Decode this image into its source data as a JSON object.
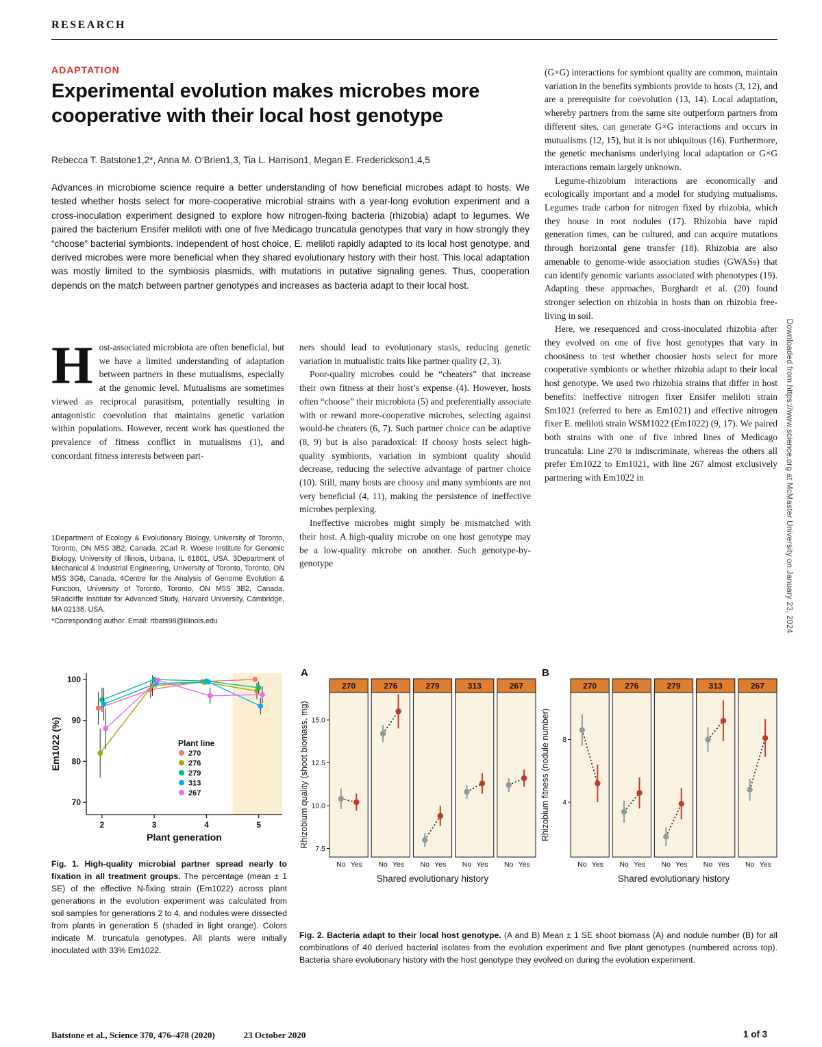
{
  "theme": {
    "accent_red": "#d6342a",
    "fig_strip_orange": "#dd7e30",
    "fig_panel_cream": "#faf3e1",
    "fig1_shade": "#fbeed2"
  },
  "page": {
    "research_label": "RESEARCH",
    "sidebar_note": "Downloaded from https://www.science.org at McMaster University on January 23, 2024",
    "footer_citation": "Batstone et al., Science 370, 476–478 (2020)",
    "footer_date": "23 October 2020",
    "footer_page": "1 of 3"
  },
  "article": {
    "section": "ADAPTATION",
    "title": "Experimental evolution makes microbes more cooperative with their local host genotype",
    "authors": "Rebecca T. Batstone1,2*, Anna M. O’Brien1,3, Tia L. Harrison1, Megan E. Frederickson1,4,5",
    "abstract": "Advances in microbiome science require a better understanding of how beneficial microbes adapt to hosts. We tested whether hosts select for more-cooperative microbial strains with a year-long evolution experiment and a cross-inoculation experiment designed to explore how nitrogen-fixing bacteria (rhizobia) adapt to legumes. We paired the bacterium Ensifer meliloti with one of five Medicago truncatula genotypes that vary in how strongly they “choose” bacterial symbionts. Independent of host choice, E. meliloti rapidly adapted to its local host genotype, and derived microbes were more beneficial when they shared evolutionary history with their host. This local adaptation was mostly limited to the symbiosis plasmids, with mutations in putative signaling genes. Thus, cooperation depends on the match between partner genotypes and increases as bacteria adapt to their local host.",
    "dropcap": "H",
    "col1": "ost-associated microbiota are often beneficial, but we have a limited understanding of adaptation between partners in these mutualisms, especially at the genomic level. Mutualisms are sometimes viewed as reciprocal parasitism, potentially resulting in antagonistic coevolution that maintains genetic variation within populations. However, recent work has questioned the prevalence of fitness conflict in mutualisms (1), and concordant fitness interests between part-",
    "affiliations": "1Department of Ecology & Evolutionary Biology, University of Toronto, Toronto, ON M5S 3B2, Canada. 2Carl R. Woese Institute for Genomic Biology, University of Illinois, Urbana, IL 61801, USA. 3Department of Mechanical & Industrial Engineering, University of Toronto, Toronto, ON M5S 3G8, Canada. 4Centre for the Analysis of Genome Evolution & Function, University of Toronto, Toronto, ON M5S 3B2, Canada. 5Radcliffe Institute for Advanced Study, Harvard University, Cambridge, MA 02138, USA.",
    "corresponding": "*Corresponding author. Email: rtbats98@illinois.edu",
    "col2": [
      "ners should lead to evolutionary stasis, reducing genetic variation in mutualistic traits like partner quality (2, 3).",
      "Poor-quality microbes could be “cheaters” that increase their own fitness at their host’s expense (4). However, hosts often “choose” their microbiota (5) and preferentially associate with or reward more-cooperative microbes, selecting against would-be cheaters (6, 7). Such partner choice can be adaptive (8, 9) but is also paradoxical: If choosy hosts select high-quality symbionts, variation in symbiont quality should decrease, reducing the selective advantage of partner choice (10). Still, many hosts are choosy and many symbionts are not very beneficial (4, 11), making the persistence of ineffective microbes perplexing.",
      "Ineffective microbes might simply be mismatched with their host. A high-quality microbe on one host genotype may be a low-quality microbe on another. Such genotype-by-genotype"
    ],
    "col3": [
      "(G×G) interactions for symbiont quality are common, maintain variation in the benefits symbionts provide to hosts (3, 12), and are a prerequisite for coevolution (13, 14). Local adaptation, whereby partners from the same site outperform partners from different sites, can generate G×G interactions and occurs in mutualisms (12, 15), but it is not ubiquitous (16). Furthermore, the genetic mechanisms underlying local adaptation or G×G interactions remain largely unknown.",
      "Legume-rhizobium interactions are economically and ecologically important and a model for studying mutualisms. Legumes trade carbon for nitrogen fixed by rhizobia, which they house in root nodules (17). Rhizobia have rapid generation times, can be cultured, and can acquire mutations through horizontal gene transfer (18). Rhizobia are also amenable to genome-wide association studies (GWASs) that can identify genomic variants associated with phenotypes (19). Adapting these approaches, Burghardt et al. (20) found stronger selection on rhizobia in hosts than on rhizobia free-living in soil.",
      "Here, we resequenced and cross-inoculated rhizobia after they evolved on one of five host genotypes that vary in choosiness to test whether choosier hosts select for more cooperative symbionts or whether rhizobia adapt to their local host genotype. We used two rhizobia strains that differ in host benefits: ineffective nitrogen fixer Ensifer meliloti strain Sm1021 (referred to here as Em1021) and effective nitrogen fixer E. meliloti strain WSM1022 (Em1022) (9, 17). We paired both strains with one of five inbred lines of Medicago truncatula: Line 270 is indiscriminate, whereas the others all prefer Em1022 to Em1021, with line 267 almost exclusively partnering with Em1022 in"
    ],
    "fig1_caption_bold": "Fig. 1. High-quality microbial partner spread nearly to fixation in all treatment groups.",
    "fig1_caption_rest": " The percentage (mean ± 1 SE) of the effective N-fixing strain (Em1022) across plant generations in the evolution experiment was calculated from soil samples for generations 2 to 4, and nodules were dissected from plants in generation 5 (shaded in light orange). Colors indicate M. truncatula genotypes. All plants were initially inoculated with 33% Em1022.",
    "fig2_caption_bold": "Fig. 2. Bacteria adapt to their local host genotype.",
    "fig2_caption_rest": " (A and B) Mean ± 1 SE shoot biomass (A) and nodule number (B) for all combinations of 40 derived bacterial isolates from the evolution experiment and five plant genotypes (numbered across top). Bacteria share evolutionary history with the host genotype they evolved on during the evolution experiment."
  },
  "chart_data": [
    {
      "id": "fig1",
      "type": "line",
      "title": "",
      "xlabel": "Plant generation",
      "ylabel": "Em1022 (%)",
      "x": [
        2,
        3,
        4,
        5
      ],
      "xticks": [
        2,
        3,
        4,
        5
      ],
      "yticks": [
        70,
        80,
        90,
        100
      ],
      "xlim": [
        1.7,
        5.45
      ],
      "ylim": [
        67,
        101.5
      ],
      "grid": false,
      "legend_title": "Plant line",
      "legend_position": "inside-center",
      "shaded_region": {
        "from": 4.5,
        "to": 5.45,
        "color": "#fbeed2"
      },
      "series": [
        {
          "name": "270",
          "color": "#F8766D",
          "values": [
            93.0,
            97.5,
            99.5,
            100.0
          ],
          "se": [
            4.0,
            2.0,
            0.6,
            0.4
          ]
        },
        {
          "name": "276",
          "color": "#A3A500",
          "values": [
            82.0,
            98.5,
            99.3,
            97.2
          ],
          "se": [
            6.0,
            2.5,
            0.6,
            2.0
          ]
        },
        {
          "name": "279",
          "color": "#00BF7D",
          "values": [
            95.0,
            100.0,
            99.6,
            98.0
          ],
          "se": [
            3.0,
            0.3,
            0.5,
            1.5
          ]
        },
        {
          "name": "313",
          "color": "#00B0F6",
          "values": [
            94.0,
            99.0,
            99.4,
            93.5
          ],
          "se": [
            4.0,
            1.0,
            0.6,
            2.0
          ]
        },
        {
          "name": "267",
          "color": "#E76BF3",
          "values": [
            88.0,
            99.8,
            96.0,
            96.3
          ],
          "se": [
            5.0,
            0.4,
            2.0,
            2.0
          ]
        }
      ]
    },
    {
      "id": "fig2a",
      "panel_label": "A",
      "type": "scatter",
      "ylabel": "Rhizobium quality (shoot biomass, mg)",
      "xlabel": "Shared evolutionary history",
      "facets": [
        "270",
        "276",
        "279",
        "313",
        "267"
      ],
      "categories": [
        "No",
        "Yes"
      ],
      "ylim": [
        7.0,
        16.6
      ],
      "yticks": [
        7.5,
        10.0,
        12.5,
        15.0
      ],
      "ytick_labels": [
        "7.5",
        "10.0",
        "12.5",
        "15.0"
      ],
      "strip_color": "#dd7e30",
      "panel_bg": "#faf3e1",
      "colors": {
        "No": "#8f9a9d",
        "Yes": "#c03a2b"
      },
      "values": {
        "No": [
          10.4,
          14.2,
          8.0,
          10.8,
          11.2
        ],
        "Yes": [
          10.2,
          15.5,
          9.4,
          11.3,
          11.6
        ]
      },
      "se": {
        "No": [
          0.6,
          0.5,
          0.4,
          0.4,
          0.4
        ],
        "Yes": [
          0.5,
          1.0,
          0.6,
          0.6,
          0.5
        ]
      }
    },
    {
      "id": "fig2b",
      "panel_label": "B",
      "type": "scatter",
      "ylabel": "Rhizobium fitness (nodule number)",
      "xlabel": "Shared evolutionary history",
      "facets": [
        "270",
        "276",
        "279",
        "313",
        "267"
      ],
      "categories": [
        "No",
        "Yes"
      ],
      "ylim": [
        0.5,
        11.0
      ],
      "yticks": [
        4,
        8
      ],
      "ytick_labels": [
        "4",
        "8"
      ],
      "strip_color": "#dd7e30",
      "panel_bg": "#faf3e1",
      "colors": {
        "No": "#8f9a9d",
        "Yes": "#c03a2b"
      },
      "values": {
        "No": [
          8.6,
          3.4,
          1.8,
          8.0,
          4.8
        ],
        "Yes": [
          5.2,
          4.6,
          3.9,
          9.2,
          8.1
        ]
      },
      "se": {
        "No": [
          1.0,
          0.7,
          0.6,
          0.8,
          0.7
        ],
        "Yes": [
          1.2,
          1.0,
          1.0,
          1.3,
          1.2
        ]
      }
    }
  ]
}
